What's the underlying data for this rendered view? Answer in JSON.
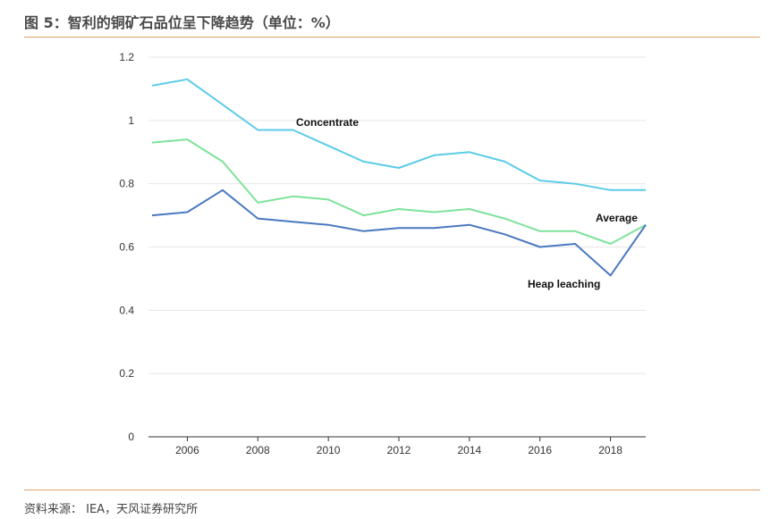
{
  "header": {
    "title": "图 5：智利的铜矿石品位呈下降趋势（单位：%）"
  },
  "footer": {
    "source": "资料来源： IEA，天风证券研究所"
  },
  "colors": {
    "concentrate": "#5bcbe8",
    "average": "#7de39a",
    "heap": "#4a78c0",
    "rule": "#e0a060"
  },
  "chart_data": {
    "type": "line",
    "x": [
      2005,
      2006,
      2007,
      2008,
      2009,
      2010,
      2011,
      2012,
      2013,
      2014,
      2015,
      2016,
      2017,
      2018,
      2019
    ],
    "x_ticks": [
      "2006",
      "2008",
      "2010",
      "2012",
      "2014",
      "2016",
      "2018"
    ],
    "y_ticks": [
      "0",
      "0.2",
      "0.4",
      "0.6",
      "0.8",
      "1",
      "1.2"
    ],
    "ylim": [
      0,
      1.2
    ],
    "xlim": [
      2005,
      2019
    ],
    "grid": true,
    "series": [
      {
        "name": "Concentrate",
        "color": "#5bcbe8",
        "values": [
          1.11,
          1.13,
          1.05,
          0.97,
          0.97,
          0.92,
          0.87,
          0.85,
          0.89,
          0.9,
          0.87,
          0.81,
          0.8,
          0.78,
          0.78
        ]
      },
      {
        "name": "Average",
        "color": "#7de39a",
        "values": [
          0.93,
          0.94,
          0.87,
          0.74,
          0.76,
          0.75,
          0.7,
          0.72,
          0.71,
          0.72,
          0.69,
          0.65,
          0.65,
          0.61,
          0.67
        ]
      },
      {
        "name": "Heap leaching",
        "color": "#4a78c0",
        "values": [
          0.7,
          0.71,
          0.78,
          0.69,
          0.68,
          0.67,
          0.65,
          0.66,
          0.66,
          0.67,
          0.64,
          0.6,
          0.61,
          0.51,
          0.67
        ]
      }
    ]
  }
}
